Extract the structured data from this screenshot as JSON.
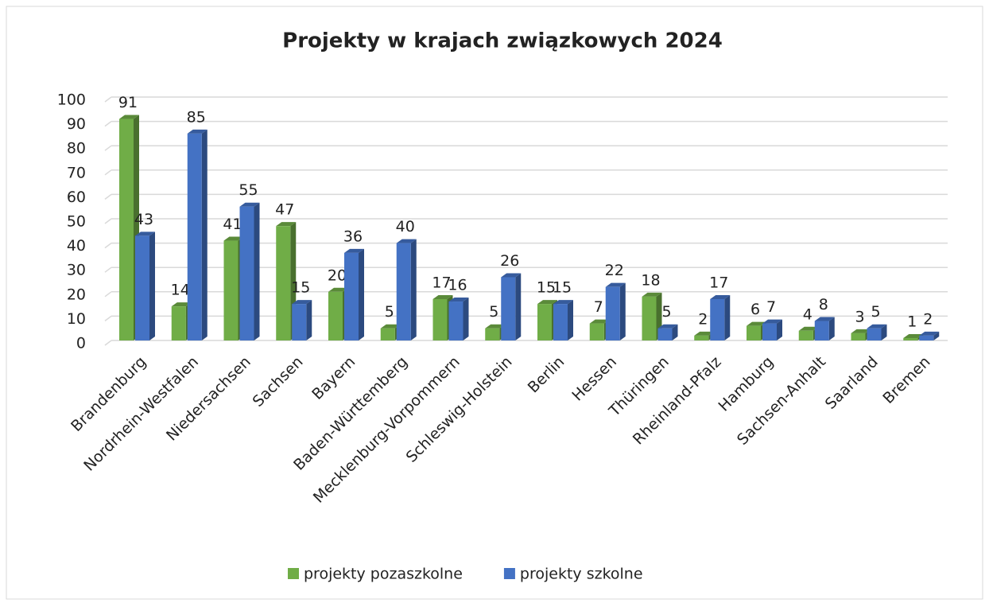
{
  "chart_data": {
    "type": "bar",
    "title": "Projekty w krajach związkowych 2024",
    "categories": [
      "Brandenburg",
      "Nordrhein-Westfalen",
      "Niedersachsen",
      "Sachsen",
      "Bayern",
      "Baden-Württemberg",
      "Mecklenburg-Vorpommern",
      "Schleswig-Holstein",
      "Berlin",
      "Hessen",
      "Thüringen",
      "Rheinland-Pfalz",
      "Hamburg",
      "Sachsen-Anhalt",
      "Saarland",
      "Bremen"
    ],
    "series": [
      {
        "name": "projekty pozaszkolne",
        "color": "#70ad47",
        "values": [
          91,
          14,
          41,
          47,
          20,
          5,
          17,
          5,
          15,
          7,
          18,
          2,
          6,
          4,
          3,
          1
        ]
      },
      {
        "name": "projekty szkolne",
        "color": "#4472c4",
        "values": [
          43,
          85,
          55,
          15,
          36,
          40,
          16,
          26,
          15,
          22,
          5,
          17,
          7,
          8,
          5,
          2
        ]
      }
    ],
    "ylim": [
      0,
      100
    ],
    "yticks": [
      0,
      10,
      20,
      30,
      40,
      50,
      60,
      70,
      80,
      90,
      100
    ],
    "grid": true,
    "legend": "bottom"
  }
}
